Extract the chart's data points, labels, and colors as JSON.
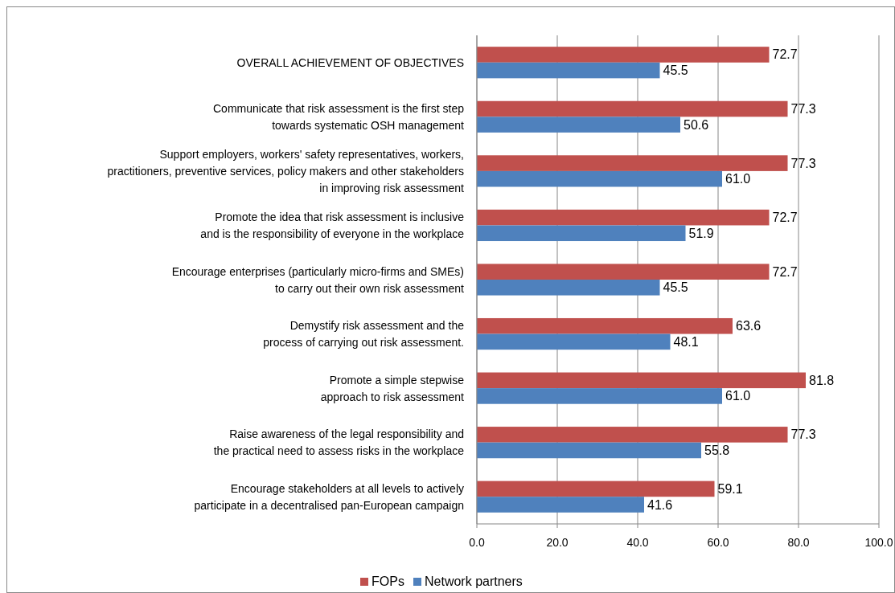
{
  "chart_data": {
    "type": "bar",
    "orientation": "horizontal",
    "categories": [
      "OVERALL ACHIEVEMENT OF OBJECTIVES",
      "Communicate that risk assessment is the first step\ntowards systematic OSH management",
      "Support employers, workers' safety representatives, workers,\npractitioners, preventive services, policy makers and other stakeholders\nin improving risk assessment",
      "Promote the idea that risk assessment is inclusive\nand is the responsibility of everyone in the workplace",
      "Encourage enterprises (particularly micro-firms and SMEs)\nto carry out their own risk assessment",
      "Demystify risk assessment and the\nprocess of carrying out risk assessment.",
      "Promote a simple stepwise\napproach to risk assessment",
      "Raise awareness of the legal responsibility and\nthe practical need to assess risks in the workplace",
      "Encourage stakeholders at all levels to actively\nparticipate in a decentralised pan-European campaign"
    ],
    "series": [
      {
        "name": "FOPs",
        "color": "#c0504d",
        "values": [
          72.7,
          77.3,
          77.3,
          72.7,
          72.7,
          63.6,
          81.8,
          77.3,
          59.1
        ],
        "value_labels": [
          "72.7",
          "77.3",
          "77.3",
          "72.7",
          "72.7",
          "63.6",
          "81.8",
          "77.3",
          "59.1"
        ]
      },
      {
        "name": "Network partners",
        "color": "#4f81bd",
        "values": [
          45.5,
          50.6,
          61.0,
          51.9,
          45.5,
          48.1,
          61.0,
          55.8,
          41.6
        ],
        "value_labels": [
          "45.5",
          "50.6",
          "61.0",
          "51.9",
          "45.5",
          "48.1",
          "61.0",
          "55.8",
          "41.6"
        ]
      }
    ],
    "xlim": [
      0,
      100
    ],
    "xticks": [
      {
        "value": 0,
        "label": "0.0"
      },
      {
        "value": 20,
        "label": "20.0"
      },
      {
        "value": 40,
        "label": "40.0"
      },
      {
        "value": 60,
        "label": "60.0"
      },
      {
        "value": 80,
        "label": "80.0"
      },
      {
        "value": 100,
        "label": "100.0"
      }
    ],
    "grid": "x",
    "legend": "bottom"
  }
}
